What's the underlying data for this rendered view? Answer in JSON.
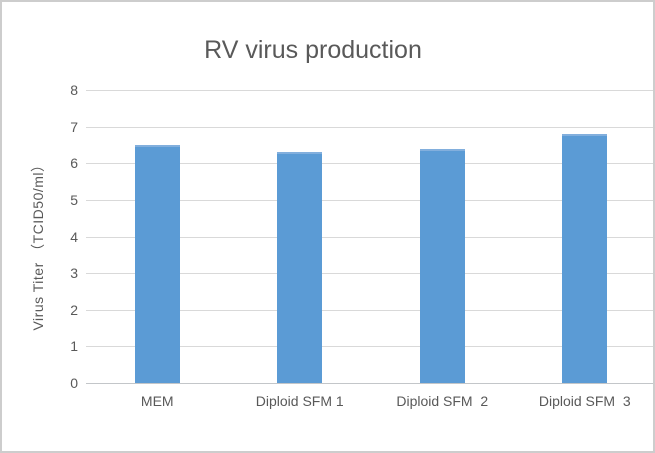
{
  "window": {
    "background": "#FFFFFF",
    "border_color": "#CDCDCD"
  },
  "chart_data": {
    "type": "bar",
    "title": "RV virus production",
    "categories": [
      "MEM",
      "Diploid SFM 1",
      "Diploid SFM  2",
      "Diploid SFM  3"
    ],
    "values": [
      6.5,
      6.3,
      6.4,
      6.8
    ],
    "xlabel": "",
    "ylabel": "Virus Titer （TCID50/ml）",
    "ylim": [
      0,
      8
    ],
    "yticks": [
      0,
      1,
      2,
      3,
      4,
      5,
      6,
      7,
      8
    ],
    "grid": true,
    "legend": false,
    "colors": {
      "bar": "#5B9BD5",
      "bar_top_edge": "#82AFDD",
      "gridline": "#D9D9D9",
      "baseline": "#C3C6C9",
      "text": "#595959"
    }
  }
}
